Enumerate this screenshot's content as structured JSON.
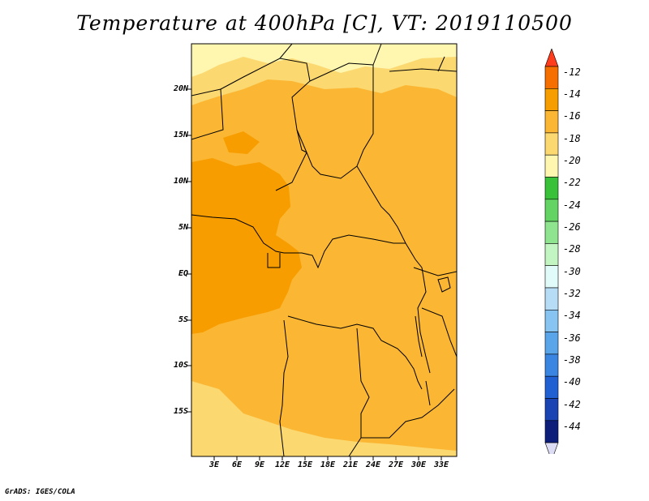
{
  "title": "Temperature at 400hPa [C], VT: 2019110500",
  "footer": "GrADS: IGES/COLA",
  "lat_ticks": [
    "20N",
    "15N",
    "10N",
    "5N",
    "EQ",
    "5S",
    "10S",
    "15S"
  ],
  "lon_ticks": [
    "3E",
    "6E",
    "9E",
    "12E",
    "15E",
    "18E",
    "21E",
    "24E",
    "27E",
    "30E",
    "33E"
  ],
  "colorbar": {
    "labels": [
      "-12",
      "-14",
      "-16",
      "-18",
      "-20",
      "-22",
      "-24",
      "-26",
      "-28",
      "-30",
      "-32",
      "-34",
      "-36",
      "-38",
      "-40",
      "-42",
      "-44"
    ],
    "colors": [
      "#ff3c1c",
      "#f76e00",
      "#f79d00",
      "#fbb734",
      "#fbd870",
      "#fff6b0",
      "#39c239",
      "#63d363",
      "#8fe48f",
      "#c2f5c2",
      "#e1fbfb",
      "#b6dcf6",
      "#87c4f1",
      "#5aa5ea",
      "#3a85e1",
      "#2060d2",
      "#1a43b4",
      "#0c1d7a",
      "#dcdcf5"
    ]
  },
  "map": {
    "colors": {
      "c14": "#f79d00",
      "c16": "#fbb734",
      "c18": "#fbd870",
      "c20": "#fff6b0"
    }
  }
}
